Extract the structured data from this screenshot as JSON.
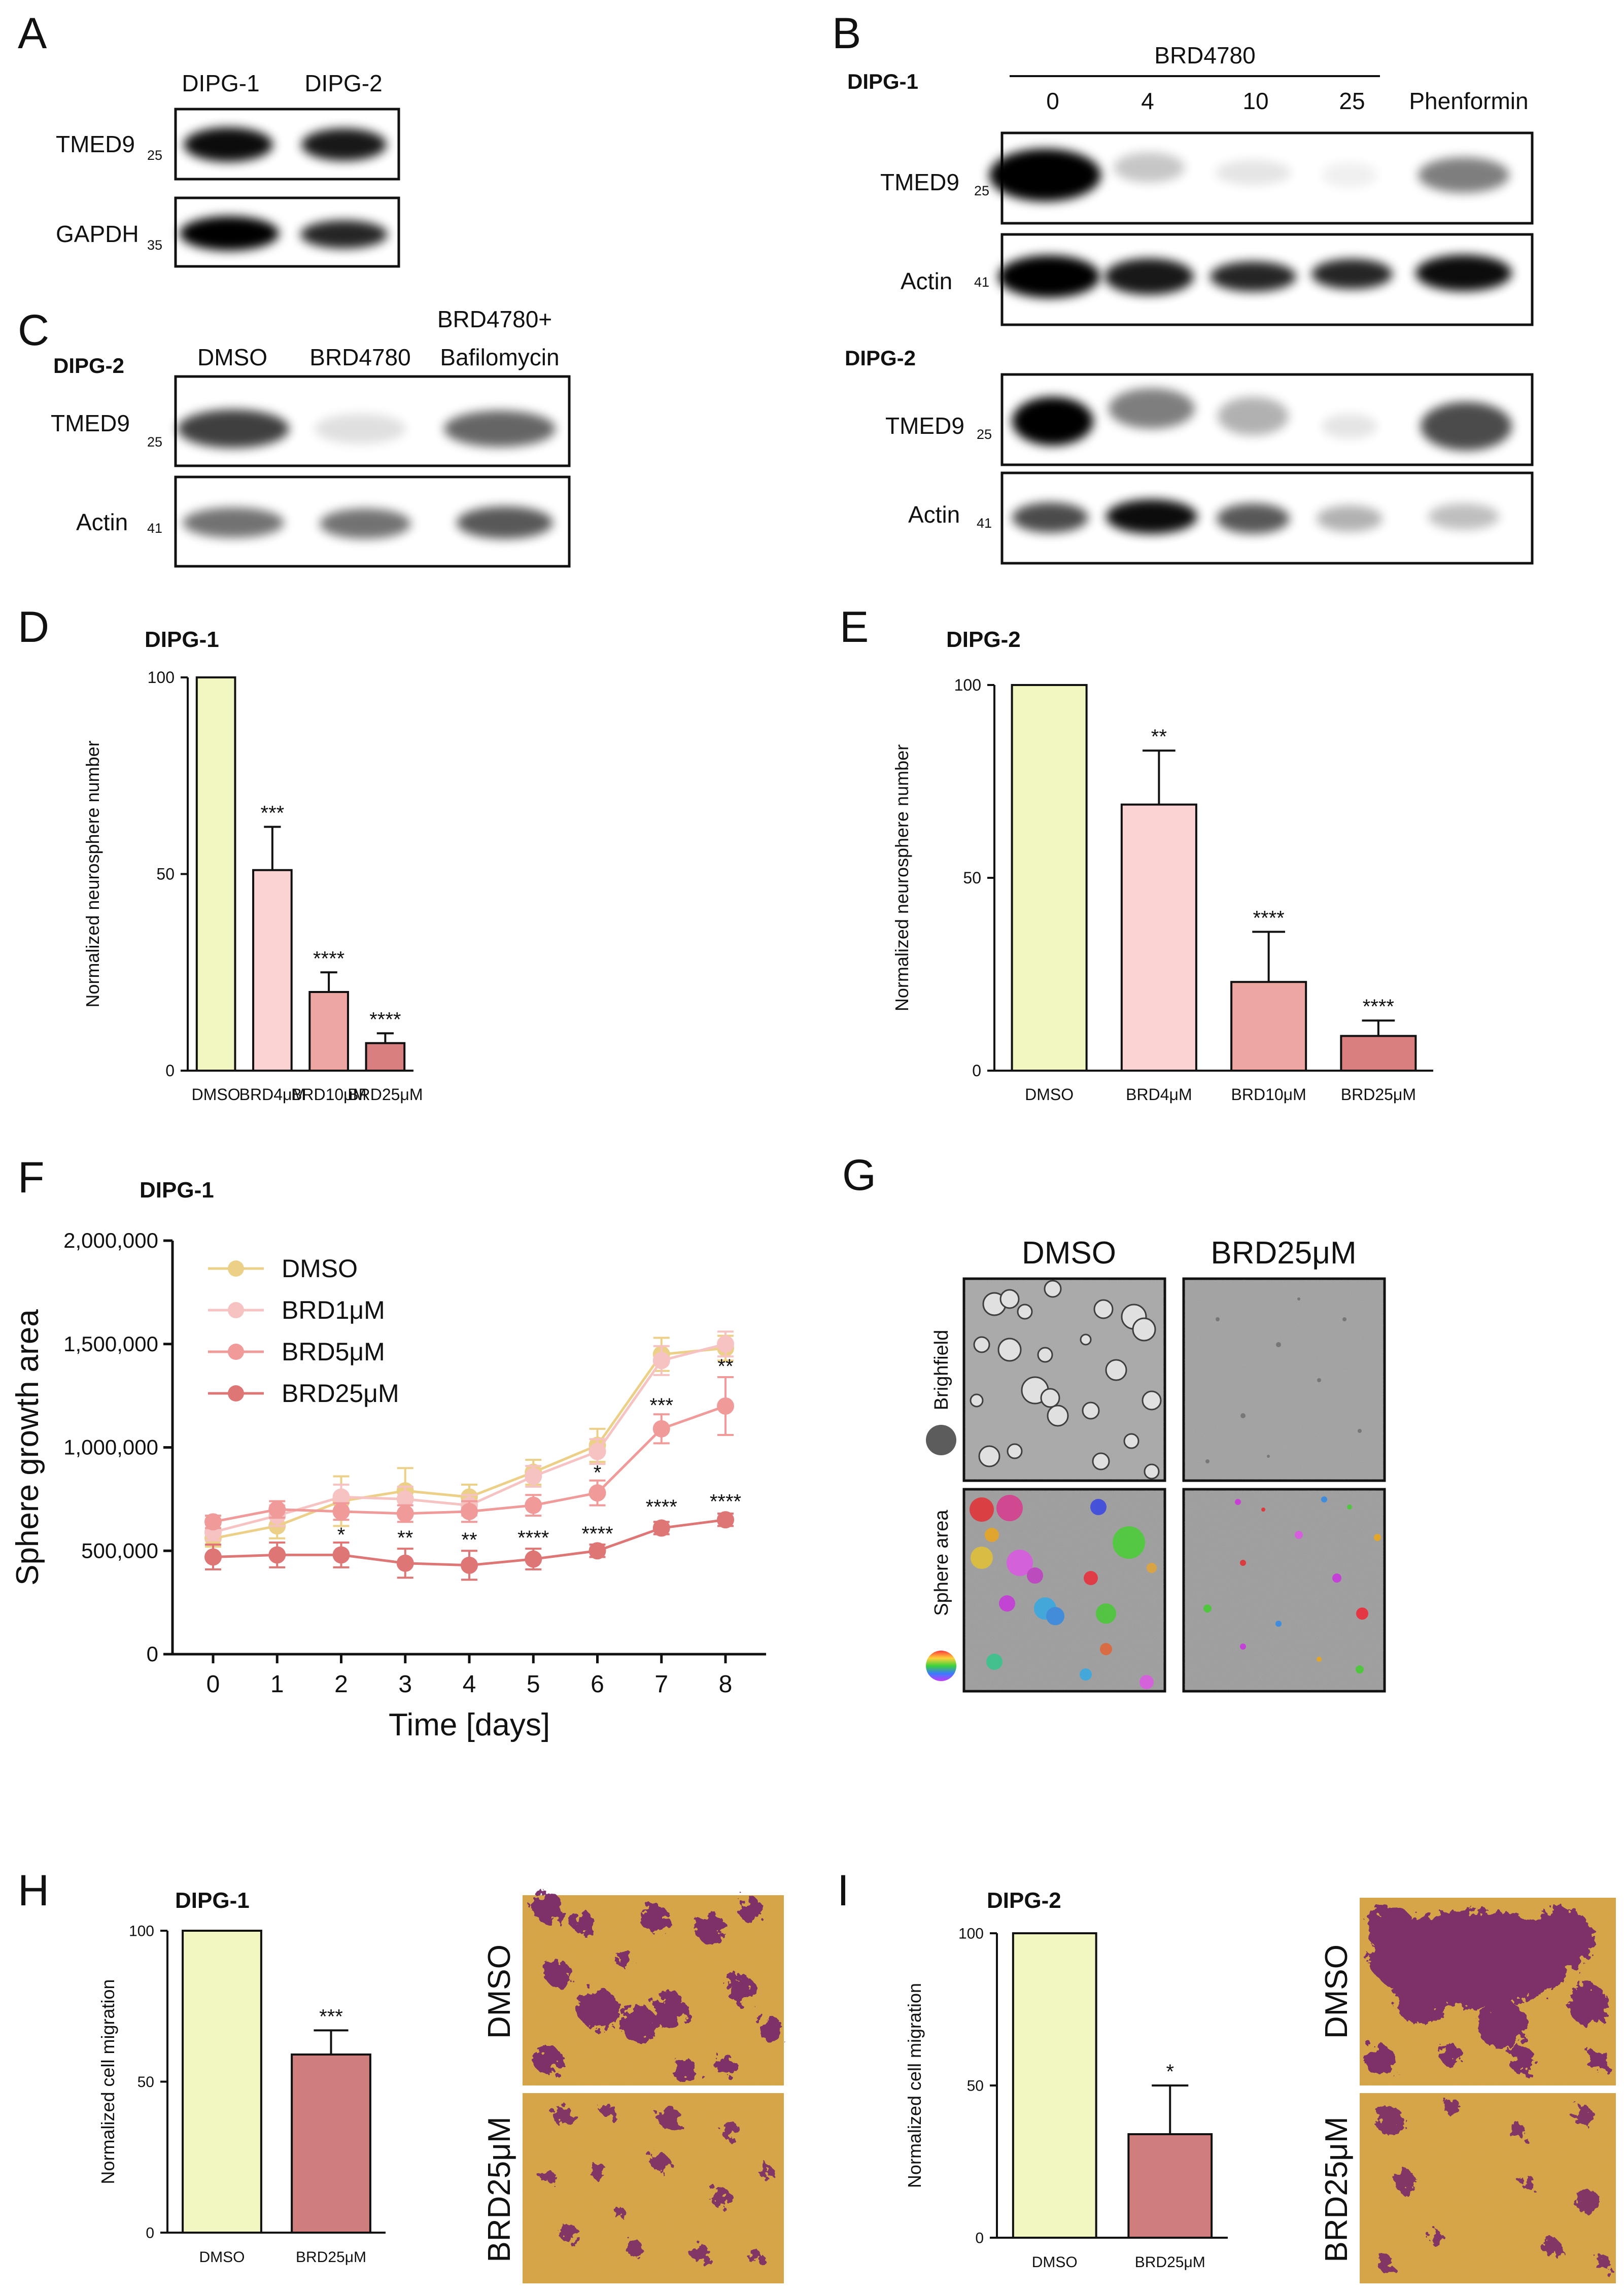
{
  "panels": {
    "A": {
      "letter": "A",
      "lanes": [
        "DIPG-1",
        "DIPG-2"
      ],
      "rows": [
        {
          "protein": "TMED9",
          "mw": "25"
        },
        {
          "protein": "GAPDH",
          "mw": "35"
        }
      ],
      "intensity": [
        [
          0.95,
          0.9
        ],
        [
          1.0,
          0.85
        ]
      ]
    },
    "B": {
      "letter": "B",
      "treatment": "BRD4780",
      "lanes": [
        "0",
        "4",
        "10",
        "25",
        "Phenformin"
      ],
      "blocks": [
        {
          "cell_line": "DIPG-1",
          "rows": [
            {
              "protein": "TMED9",
              "mw": "25",
              "intensity": [
                1.0,
                0.22,
                0.1,
                0.06,
                0.5
              ]
            },
            {
              "protein": "Actin",
              "mw": "41",
              "intensity": [
                1.0,
                0.9,
                0.85,
                0.85,
                0.95
              ]
            }
          ]
        },
        {
          "cell_line": "DIPG-2",
          "rows": [
            {
              "protein": "TMED9",
              "mw": "25",
              "intensity": [
                1.0,
                0.5,
                0.3,
                0.1,
                0.7
              ]
            },
            {
              "protein": "Actin",
              "mw": "41",
              "intensity": [
                0.7,
                0.95,
                0.65,
                0.3,
                0.25
              ]
            }
          ]
        }
      ]
    },
    "C": {
      "letter": "C",
      "cell_line": "DIPG-2",
      "lanes": [
        "DMSO",
        "BRD4780",
        "BRD4780+ Bafilomycin"
      ],
      "lane_line1": "BRD4780+",
      "lane_line2": "Bafilomycin",
      "rows": [
        {
          "protein": "TMED9",
          "mw": "25",
          "intensity": [
            0.75,
            0.12,
            0.6
          ]
        },
        {
          "protein": "Actin",
          "mw": "41",
          "intensity": [
            0.55,
            0.55,
            0.65
          ]
        }
      ]
    },
    "G": {
      "letter": "G",
      "columns": [
        "DMSO",
        "BRD25μM"
      ],
      "rows": [
        "Brighfield",
        "Sphere area"
      ]
    },
    "H_images": {
      "labels": [
        "DMSO",
        "BRD25μM"
      ]
    },
    "I_images": {
      "labels": [
        "DMSO",
        "BRD25μM"
      ]
    }
  },
  "chart_data": [
    {
      "id": "D",
      "letter": "D",
      "type": "bar",
      "title": "DIPG-1",
      "categories": [
        "DMSO",
        "BRD4μM",
        "BRD10μM",
        "BRD25μM"
      ],
      "values": [
        100,
        51,
        20,
        7
      ],
      "errors": [
        0,
        11,
        5,
        2.5
      ],
      "significance": [
        "",
        "***",
        "****",
        "****"
      ],
      "colors": [
        "#f2f7c2",
        "#fbd3d3",
        "#eea6a2",
        "#d97f7f"
      ],
      "xlabel": "",
      "ylabel": "Normalized neurosphere number",
      "ylim": [
        0,
        100
      ],
      "yticks": [
        0,
        50,
        100
      ],
      "ytick_labels": [
        "0",
        "50",
        "100"
      ]
    },
    {
      "id": "E",
      "letter": "E",
      "type": "bar",
      "title": "DIPG-2",
      "categories": [
        "DMSO",
        "BRD4μM",
        "BRD10μM",
        "BRD25μM"
      ],
      "values": [
        100,
        69,
        23,
        9
      ],
      "errors": [
        0,
        14,
        13,
        4
      ],
      "significance": [
        "",
        "**",
        "****",
        "****"
      ],
      "colors": [
        "#f2f7c2",
        "#fbd3d3",
        "#eea6a2",
        "#d97f7f"
      ],
      "xlabel": "",
      "ylabel": "Normalized neurosphere number",
      "ylim": [
        0,
        100
      ],
      "yticks": [
        0,
        50,
        100
      ],
      "ytick_labels": [
        "0",
        "50",
        "100"
      ]
    },
    {
      "id": "F",
      "letter": "F",
      "type": "line",
      "title": "DIPG-1",
      "x": [
        0,
        1,
        2,
        3,
        4,
        5,
        6,
        7,
        8
      ],
      "series": [
        {
          "name": "DMSO",
          "color": "#ecd088",
          "values": [
            560000,
            620000,
            740000,
            790000,
            760000,
            880000,
            1010000,
            1450000,
            1480000
          ],
          "errors": [
            40000,
            60000,
            120000,
            110000,
            60000,
            60000,
            80000,
            80000,
            60000
          ]
        },
        {
          "name": "BRD1μM",
          "color": "#f6c2c2",
          "values": [
            590000,
            670000,
            760000,
            750000,
            720000,
            860000,
            980000,
            1420000,
            1500000
          ],
          "errors": [
            40000,
            50000,
            60000,
            60000,
            50000,
            50000,
            60000,
            70000,
            60000
          ]
        },
        {
          "name": "BRD5μM",
          "color": "#f09a9a",
          "values": [
            640000,
            700000,
            690000,
            680000,
            690000,
            720000,
            780000,
            1090000,
            1200000
          ],
          "errors": [
            30000,
            40000,
            40000,
            40000,
            50000,
            50000,
            60000,
            70000,
            140000
          ]
        },
        {
          "name": "BRD25μM",
          "color": "#df7676",
          "values": [
            470000,
            480000,
            480000,
            440000,
            430000,
            460000,
            500000,
            610000,
            650000
          ],
          "errors": [
            60000,
            60000,
            60000,
            70000,
            70000,
            50000,
            30000,
            30000,
            30000
          ]
        }
      ],
      "annotations": [
        {
          "x": 2,
          "y": 545000,
          "text": "*"
        },
        {
          "x": 3,
          "y": 530000,
          "text": "**"
        },
        {
          "x": 4,
          "y": 520000,
          "text": "**"
        },
        {
          "x": 5,
          "y": 530000,
          "text": "****"
        },
        {
          "x": 6,
          "y": 550000,
          "text": "****"
        },
        {
          "x": 6,
          "y": 845000,
          "text": "*"
        },
        {
          "x": 7,
          "y": 680000,
          "text": "****"
        },
        {
          "x": 7,
          "y": 1170000,
          "text": "***"
        },
        {
          "x": 8,
          "y": 705000,
          "text": "****"
        },
        {
          "x": 8,
          "y": 1360000,
          "text": "**"
        }
      ],
      "xlabel": "Time [days]",
      "ylabel": "Sphere growth area",
      "xlim": [
        0,
        8
      ],
      "ylim": [
        0,
        2000000
      ],
      "yticks": [
        0,
        500000,
        1000000,
        1500000,
        2000000
      ],
      "ytick_labels": [
        "0",
        "500,000",
        "1,000,000",
        "1,500,000",
        "2,000,000"
      ],
      "xtick_labels": [
        "0",
        "1",
        "2",
        "3",
        "4",
        "5",
        "6",
        "7",
        "8"
      ],
      "legend": "top-left"
    },
    {
      "id": "H",
      "letter": "H",
      "type": "bar",
      "title": "DIPG-1",
      "categories": [
        "DMSO",
        "BRD25μM"
      ],
      "values": [
        100,
        59
      ],
      "errors": [
        0,
        8
      ],
      "significance": [
        "",
        "***"
      ],
      "colors": [
        "#f2f7c2",
        "#d07d7d"
      ],
      "xlabel": "",
      "ylabel": "Normalized cell migration",
      "ylim": [
        0,
        100
      ],
      "yticks": [
        0,
        50,
        100
      ],
      "ytick_labels": [
        "0",
        "50",
        "100"
      ]
    },
    {
      "id": "I",
      "letter": "I",
      "type": "bar",
      "title": "DIPG-2",
      "categories": [
        "DMSO",
        "BRD25μM"
      ],
      "values": [
        100,
        34
      ],
      "errors": [
        0,
        16
      ],
      "significance": [
        "",
        "*"
      ],
      "colors": [
        "#f2f7c2",
        "#d07d7d"
      ],
      "xlabel": "",
      "ylabel": "Normalized cell migration",
      "ylim": [
        0,
        100
      ],
      "yticks": [
        0,
        50,
        100
      ],
      "ytick_labels": [
        "0",
        "50",
        "100"
      ]
    }
  ]
}
